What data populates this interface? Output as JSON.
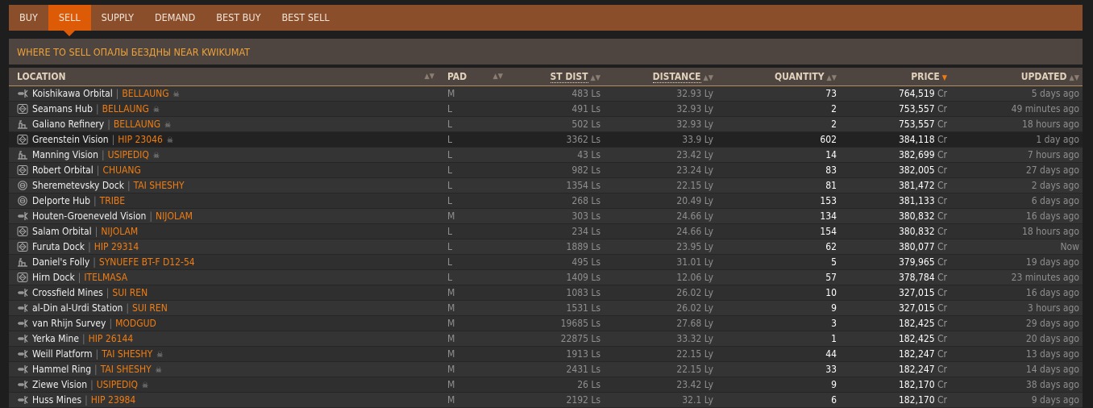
{
  "tabs": [
    "BUY",
    "SELL",
    "SUPPLY",
    "DEMAND",
    "BEST BUY",
    "BEST SELL"
  ],
  "active_tab": "SELL",
  "title": "WHERE TO SELL ОПАЛЫ БЕЗДНЫ NEAR KWIKUMAT",
  "columns": {
    "location": "LOCATION",
    "pad": "PAD",
    "st_dist": "ST DIST",
    "distance": "DISTANCE",
    "quantity": "QUANTITY",
    "price": "PRICE",
    "updated": "UPDATED"
  },
  "sort": {
    "column": "price",
    "direction": "desc"
  },
  "colors": {
    "accent": "#dd5a07",
    "tabbar": "#8a4e2b",
    "system": "#f27d10",
    "title": "#f0a237"
  },
  "rows": [
    {
      "icon": "outpost-icon",
      "station": "Koishikawa Orbital",
      "system": "BELLAUNG",
      "anarchy": true,
      "pad": "M",
      "st_dist": "483 Ls",
      "distance": "32.93 Ly",
      "quantity": "73",
      "price": "764,519",
      "unit": "Cr",
      "updated": "5 days ago"
    },
    {
      "icon": "coriolis-icon",
      "station": "Seamans Hub",
      "system": "BELLAUNG",
      "anarchy": true,
      "pad": "L",
      "st_dist": "491 Ls",
      "distance": "32.93 Ly",
      "quantity": "2",
      "price": "753,557",
      "unit": "Cr",
      "updated": "49 minutes ago"
    },
    {
      "icon": "planetary-icon",
      "station": "Galiano Refinery",
      "system": "BELLAUNG",
      "anarchy": true,
      "pad": "L",
      "st_dist": "502 Ls",
      "distance": "32.93 Ly",
      "quantity": "2",
      "price": "753,557",
      "unit": "Cr",
      "updated": "18 hours ago"
    },
    {
      "icon": "coriolis-icon",
      "station": "Greenstein Vision",
      "system": "HIP 23046",
      "anarchy": true,
      "pad": "L",
      "st_dist": "3362 Ls",
      "distance": "33.9 Ly",
      "quantity": "602",
      "price": "384,118",
      "unit": "Cr",
      "updated": "1 day ago",
      "highlighted": true
    },
    {
      "icon": "planetary-icon",
      "station": "Manning Vision",
      "system": "USIPEDIQ",
      "anarchy": true,
      "pad": "L",
      "st_dist": "43 Ls",
      "distance": "23.42 Ly",
      "quantity": "14",
      "price": "382,699",
      "unit": "Cr",
      "updated": "7 hours ago"
    },
    {
      "icon": "coriolis-icon",
      "station": "Robert Orbital",
      "system": "CHUANG",
      "anarchy": false,
      "pad": "L",
      "st_dist": "982 Ls",
      "distance": "23.24 Ly",
      "quantity": "83",
      "price": "382,005",
      "unit": "Cr",
      "updated": "27 days ago"
    },
    {
      "icon": "orbis-icon",
      "station": "Sheremetevsky Dock",
      "system": "TAI SHESHY",
      "anarchy": false,
      "pad": "L",
      "st_dist": "1354 Ls",
      "distance": "22.15 Ly",
      "quantity": "81",
      "price": "381,472",
      "unit": "Cr",
      "updated": "2 days ago"
    },
    {
      "icon": "orbis-icon",
      "station": "Delporte Hub",
      "system": "TRIBE",
      "anarchy": false,
      "pad": "L",
      "st_dist": "268 Ls",
      "distance": "20.49 Ly",
      "quantity": "153",
      "price": "381,133",
      "unit": "Cr",
      "updated": "6 days ago"
    },
    {
      "icon": "outpost-icon",
      "station": "Houten-Groeneveld Vision",
      "system": "NIJOLAM",
      "anarchy": false,
      "pad": "M",
      "st_dist": "303 Ls",
      "distance": "24.66 Ly",
      "quantity": "134",
      "price": "380,832",
      "unit": "Cr",
      "updated": "16 days ago"
    },
    {
      "icon": "coriolis-icon",
      "station": "Salam Orbital",
      "system": "NIJOLAM",
      "anarchy": false,
      "pad": "L",
      "st_dist": "234 Ls",
      "distance": "24.66 Ly",
      "quantity": "154",
      "price": "380,832",
      "unit": "Cr",
      "updated": "18 hours ago"
    },
    {
      "icon": "coriolis-icon",
      "station": "Furuta Dock",
      "system": "HIP 29314",
      "anarchy": false,
      "pad": "L",
      "st_dist": "1889 Ls",
      "distance": "23.95 Ly",
      "quantity": "62",
      "price": "380,077",
      "unit": "Cr",
      "updated": "Now"
    },
    {
      "icon": "planetary-icon",
      "station": "Daniel's Folly",
      "system": "SYNUEFE BT-F D12-54",
      "anarchy": false,
      "pad": "L",
      "st_dist": "495 Ls",
      "distance": "31.01 Ly",
      "quantity": "5",
      "price": "379,965",
      "unit": "Cr",
      "updated": "19 days ago"
    },
    {
      "icon": "coriolis-icon",
      "station": "Hirn Dock",
      "system": "ITELMASA",
      "anarchy": false,
      "pad": "L",
      "st_dist": "1409 Ls",
      "distance": "12.06 Ly",
      "quantity": "57",
      "price": "378,784",
      "unit": "Cr",
      "updated": "23 minutes ago"
    },
    {
      "icon": "outpost-icon",
      "station": "Crossfield Mines",
      "system": "SUI REN",
      "anarchy": false,
      "pad": "M",
      "st_dist": "1083 Ls",
      "distance": "26.02 Ly",
      "quantity": "10",
      "price": "327,015",
      "unit": "Cr",
      "updated": "16 days ago"
    },
    {
      "icon": "outpost-icon",
      "station": "al-Din al-Urdi Station",
      "system": "SUI REN",
      "anarchy": false,
      "pad": "M",
      "st_dist": "1531 Ls",
      "distance": "26.02 Ly",
      "quantity": "9",
      "price": "327,015",
      "unit": "Cr",
      "updated": "3 hours ago"
    },
    {
      "icon": "outpost-icon",
      "station": "van Rhijn Survey",
      "system": "MODGUD",
      "anarchy": false,
      "pad": "M",
      "st_dist": "19685 Ls",
      "distance": "27.68 Ly",
      "quantity": "3",
      "price": "182,425",
      "unit": "Cr",
      "updated": "29 days ago"
    },
    {
      "icon": "outpost-icon",
      "station": "Yerka Mine",
      "system": "HIP 26144",
      "anarchy": false,
      "pad": "M",
      "st_dist": "22875 Ls",
      "distance": "33.32 Ly",
      "quantity": "1",
      "price": "182,425",
      "unit": "Cr",
      "updated": "20 days ago"
    },
    {
      "icon": "outpost-icon",
      "station": "Weill Platform",
      "system": "TAI SHESHY",
      "anarchy": true,
      "pad": "M",
      "st_dist": "1913 Ls",
      "distance": "22.15 Ly",
      "quantity": "44",
      "price": "182,247",
      "unit": "Cr",
      "updated": "13 days ago"
    },
    {
      "icon": "outpost-icon",
      "station": "Hammel Ring",
      "system": "TAI SHESHY",
      "anarchy": true,
      "pad": "M",
      "st_dist": "2431 Ls",
      "distance": "22.15 Ly",
      "quantity": "33",
      "price": "182,247",
      "unit": "Cr",
      "updated": "14 days ago"
    },
    {
      "icon": "outpost-icon",
      "station": "Ziewe Vision",
      "system": "USIPEDIQ",
      "anarchy": true,
      "pad": "M",
      "st_dist": "26 Ls",
      "distance": "23.42 Ly",
      "quantity": "9",
      "price": "182,170",
      "unit": "Cr",
      "updated": "38 days ago"
    },
    {
      "icon": "outpost-icon",
      "station": "Huss Mines",
      "system": "HIP 23984",
      "anarchy": false,
      "pad": "M",
      "st_dist": "2192 Ls",
      "distance": "32.1 Ly",
      "quantity": "6",
      "price": "182,170",
      "unit": "Cr",
      "updated": "9 days ago"
    }
  ]
}
